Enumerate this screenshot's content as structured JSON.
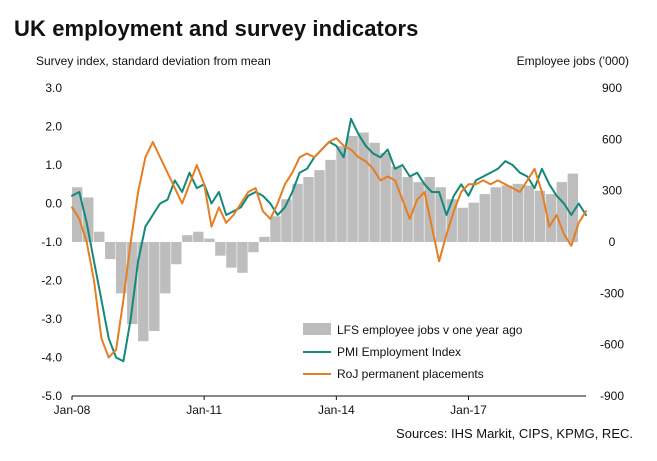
{
  "title": "UK employment and survey indicators",
  "left_axis_label": "Survey index, standard deviation from mean",
  "right_axis_label": "Employee jobs ('000)",
  "source": "Sources: IHS Markit, CIPS, KPMG, REC.",
  "colors": {
    "bars": "#bdbdbd",
    "pmi": "#14897a",
    "roj": "#e67e22"
  },
  "chart_data": {
    "type": "line",
    "x_tick_labels": [
      "Jan-08",
      "Jan-11",
      "Jan-14",
      "Jan-17"
    ],
    "x_ticks": [
      "2008-01",
      "2011-01",
      "2014-01",
      "2017-01"
    ],
    "x_range": [
      "2008-01",
      "2019-09"
    ],
    "y_left": {
      "range": [
        -5.0,
        3.0
      ],
      "ticks": [
        "3.0",
        "2.0",
        "1.0",
        "0.0",
        "-1.0",
        "-2.0",
        "-3.0",
        "-4.0",
        "-5.0"
      ]
    },
    "y_right": {
      "range": [
        -900,
        900
      ],
      "ticks": [
        "900",
        "600",
        "300",
        "0",
        "-300",
        "-600",
        "-900"
      ]
    },
    "legend_position": "bottom-right",
    "series": [
      {
        "name": "LFS employee jobs v one year ago",
        "type": "bar",
        "axis": "right",
        "frequency": "quarterly",
        "x": [
          "2008-01",
          "2008-04",
          "2008-07",
          "2008-10",
          "2009-01",
          "2009-04",
          "2009-07",
          "2009-10",
          "2010-01",
          "2010-04",
          "2010-07",
          "2010-10",
          "2011-01",
          "2011-04",
          "2011-07",
          "2011-10",
          "2012-01",
          "2012-04",
          "2012-07",
          "2012-10",
          "2013-01",
          "2013-04",
          "2013-07",
          "2013-10",
          "2014-01",
          "2014-04",
          "2014-07",
          "2014-10",
          "2015-01",
          "2015-04",
          "2015-07",
          "2015-10",
          "2016-01",
          "2016-04",
          "2016-07",
          "2016-10",
          "2017-01",
          "2017-04",
          "2017-07",
          "2017-10",
          "2018-01",
          "2018-04",
          "2018-07",
          "2018-10",
          "2019-01",
          "2019-04"
        ],
        "values": [
          320,
          260,
          60,
          -100,
          -300,
          -480,
          -580,
          -520,
          -300,
          -130,
          40,
          60,
          20,
          -80,
          -150,
          -180,
          -60,
          30,
          150,
          250,
          340,
          380,
          420,
          480,
          560,
          620,
          640,
          580,
          520,
          440,
          380,
          350,
          380,
          320,
          250,
          200,
          230,
          280,
          320,
          330,
          340,
          330,
          300,
          280,
          350,
          400
        ]
      },
      {
        "name": "PMI Employment Index",
        "type": "line",
        "axis": "left",
        "x": [
          "2008-01",
          "2008-03",
          "2008-05",
          "2008-07",
          "2008-09",
          "2008-11",
          "2009-01",
          "2009-03",
          "2009-05",
          "2009-07",
          "2009-09",
          "2009-11",
          "2010-01",
          "2010-03",
          "2010-05",
          "2010-07",
          "2010-09",
          "2010-11",
          "2011-01",
          "2011-03",
          "2011-05",
          "2011-07",
          "2011-09",
          "2011-11",
          "2012-01",
          "2012-03",
          "2012-05",
          "2012-07",
          "2012-09",
          "2012-11",
          "2013-01",
          "2013-03",
          "2013-05",
          "2013-07",
          "2013-09",
          "2013-11",
          "2014-01",
          "2014-03",
          "2014-05",
          "2014-07",
          "2014-09",
          "2014-11",
          "2015-01",
          "2015-03",
          "2015-05",
          "2015-07",
          "2015-09",
          "2015-11",
          "2016-01",
          "2016-03",
          "2016-05",
          "2016-07",
          "2016-09",
          "2016-11",
          "2017-01",
          "2017-03",
          "2017-05",
          "2017-07",
          "2017-09",
          "2017-11",
          "2018-01",
          "2018-03",
          "2018-05",
          "2018-07",
          "2018-09",
          "2018-11",
          "2019-01",
          "2019-03",
          "2019-05",
          "2019-07",
          "2019-09"
        ],
        "values": [
          0.2,
          0.3,
          -0.5,
          -1.5,
          -2.5,
          -3.5,
          -4.0,
          -4.1,
          -3.0,
          -1.5,
          -0.6,
          -0.3,
          0.0,
          0.1,
          0.6,
          0.3,
          0.8,
          0.4,
          0.5,
          0.0,
          0.3,
          -0.3,
          -0.2,
          -0.1,
          0.2,
          0.3,
          0.2,
          0.0,
          -0.3,
          -0.1,
          0.3,
          0.8,
          0.9,
          1.2,
          1.4,
          1.6,
          1.5,
          1.2,
          2.2,
          1.8,
          1.5,
          1.3,
          1.2,
          1.4,
          0.9,
          1.0,
          0.7,
          0.8,
          0.5,
          0.3,
          0.3,
          -0.3,
          0.2,
          0.5,
          0.2,
          0.6,
          0.7,
          0.8,
          0.9,
          1.1,
          1.0,
          0.8,
          0.7,
          0.4,
          0.9,
          0.5,
          0.2,
          0.0,
          -0.3,
          0.0,
          -0.3
        ]
      },
      {
        "name": "RoJ permanent placements",
        "type": "line",
        "axis": "left",
        "x": [
          "2008-01",
          "2008-03",
          "2008-05",
          "2008-07",
          "2008-09",
          "2008-11",
          "2009-01",
          "2009-03",
          "2009-05",
          "2009-07",
          "2009-09",
          "2009-11",
          "2010-01",
          "2010-03",
          "2010-05",
          "2010-07",
          "2010-09",
          "2010-11",
          "2011-01",
          "2011-03",
          "2011-05",
          "2011-07",
          "2011-09",
          "2011-11",
          "2012-01",
          "2012-03",
          "2012-05",
          "2012-07",
          "2012-09",
          "2012-11",
          "2013-01",
          "2013-03",
          "2013-05",
          "2013-07",
          "2013-09",
          "2013-11",
          "2014-01",
          "2014-03",
          "2014-05",
          "2014-07",
          "2014-09",
          "2014-11",
          "2015-01",
          "2015-03",
          "2015-05",
          "2015-07",
          "2015-09",
          "2015-11",
          "2016-01",
          "2016-03",
          "2016-05",
          "2016-07",
          "2016-09",
          "2016-11",
          "2017-01",
          "2017-03",
          "2017-05",
          "2017-07",
          "2017-09",
          "2017-11",
          "2018-01",
          "2018-03",
          "2018-05",
          "2018-07",
          "2018-09",
          "2018-11",
          "2019-01",
          "2019-03",
          "2019-05",
          "2019-07",
          "2019-09"
        ],
        "values": [
          -0.1,
          -0.4,
          -1.0,
          -2.0,
          -3.5,
          -4.0,
          -3.8,
          -2.5,
          -1.0,
          0.3,
          1.2,
          1.6,
          1.2,
          0.8,
          0.4,
          0.0,
          0.5,
          1.0,
          0.5,
          -0.6,
          -0.1,
          -0.5,
          -0.3,
          0.0,
          0.3,
          0.4,
          -0.2,
          -0.4,
          0.0,
          0.5,
          0.8,
          1.2,
          1.3,
          1.2,
          1.4,
          1.6,
          1.7,
          1.5,
          1.4,
          1.2,
          1.1,
          0.9,
          0.6,
          0.7,
          0.6,
          0.1,
          -0.4,
          0.1,
          0.3,
          -0.6,
          -1.5,
          -0.8,
          -0.2,
          0.3,
          0.5,
          0.5,
          0.6,
          0.5,
          0.6,
          0.5,
          0.4,
          0.3,
          0.6,
          0.9,
          0.3,
          -0.6,
          -0.3,
          -0.8,
          -1.1,
          -0.5,
          -0.2
        ]
      }
    ]
  }
}
